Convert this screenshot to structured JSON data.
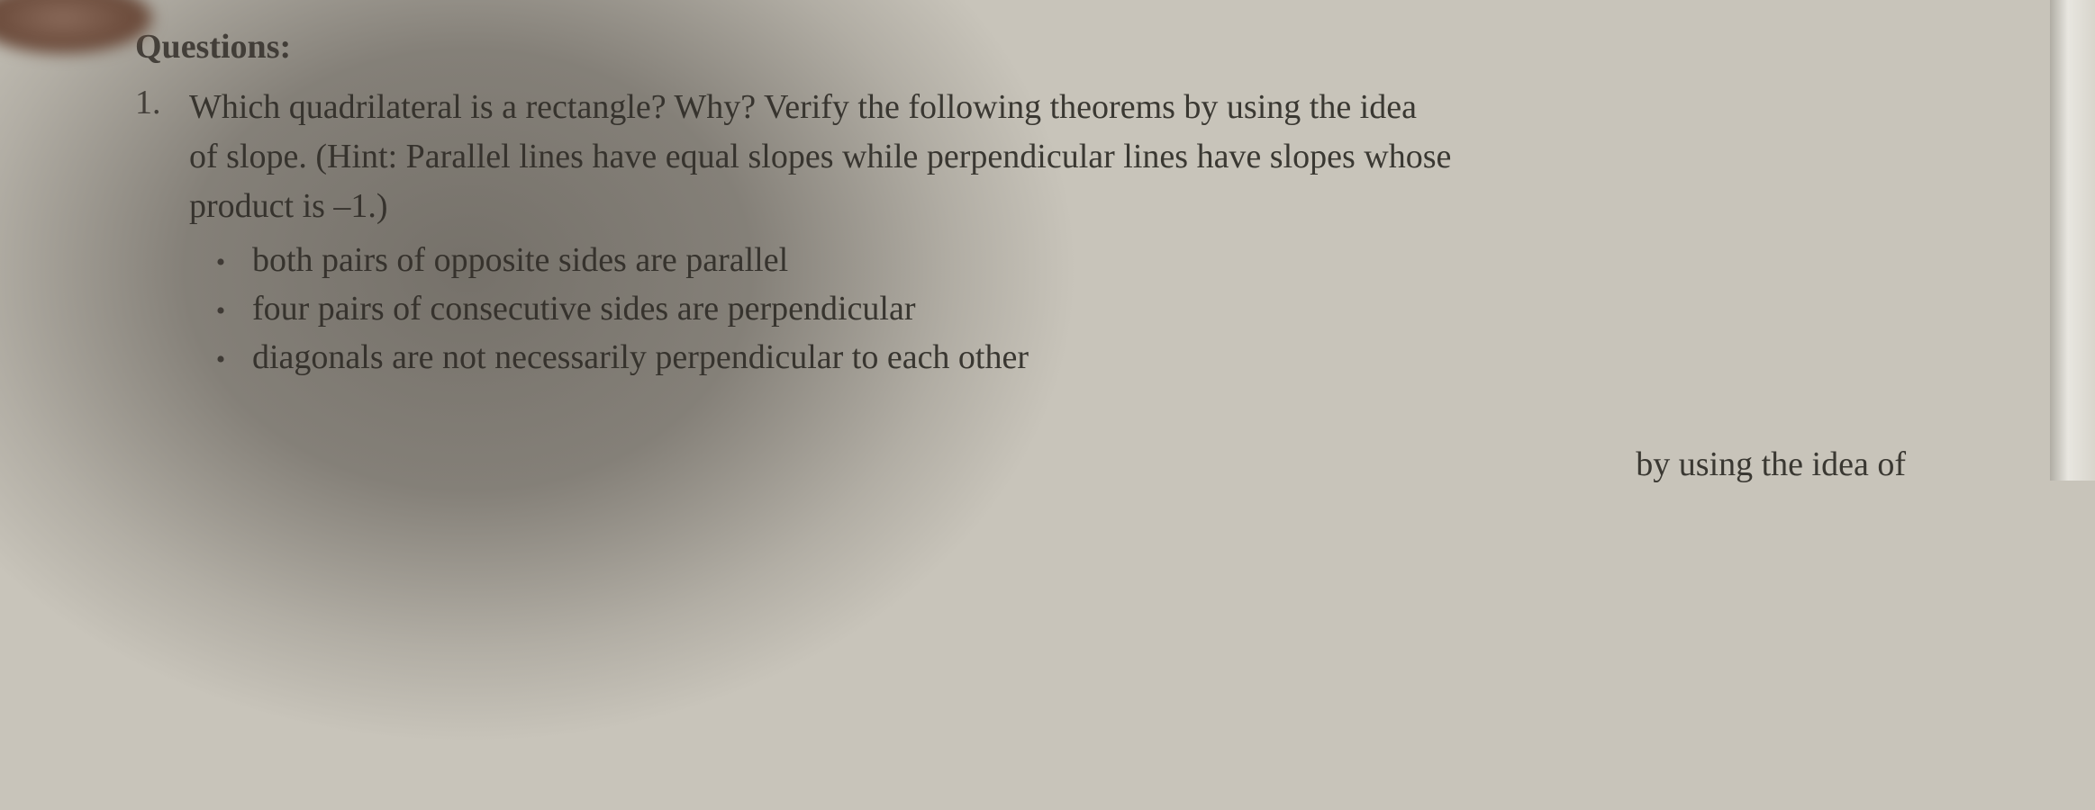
{
  "heading": "Questions:",
  "question": {
    "number": "1.",
    "line1": "Which quadrilateral is a rectangle? Why? Verify the following theorems by using the idea",
    "line2": "of slope. (Hint: Parallel lines have equal slopes while perpendicular lines have slopes whose",
    "line3": "product is –1.)"
  },
  "bullets": [
    "both pairs of opposite sides are parallel",
    "four pairs of consecutive sides are perpendicular",
    "diagonals are not necessarily perpendicular to each other"
  ],
  "partial_bottom": "by using the idea of",
  "colors": {
    "page_bg": "#c8c4ba",
    "text": "#3a3832",
    "heading": "#4a4640"
  },
  "typography": {
    "body_fontsize": 38,
    "heading_fontsize": 38,
    "font_family": "Georgia serif"
  }
}
